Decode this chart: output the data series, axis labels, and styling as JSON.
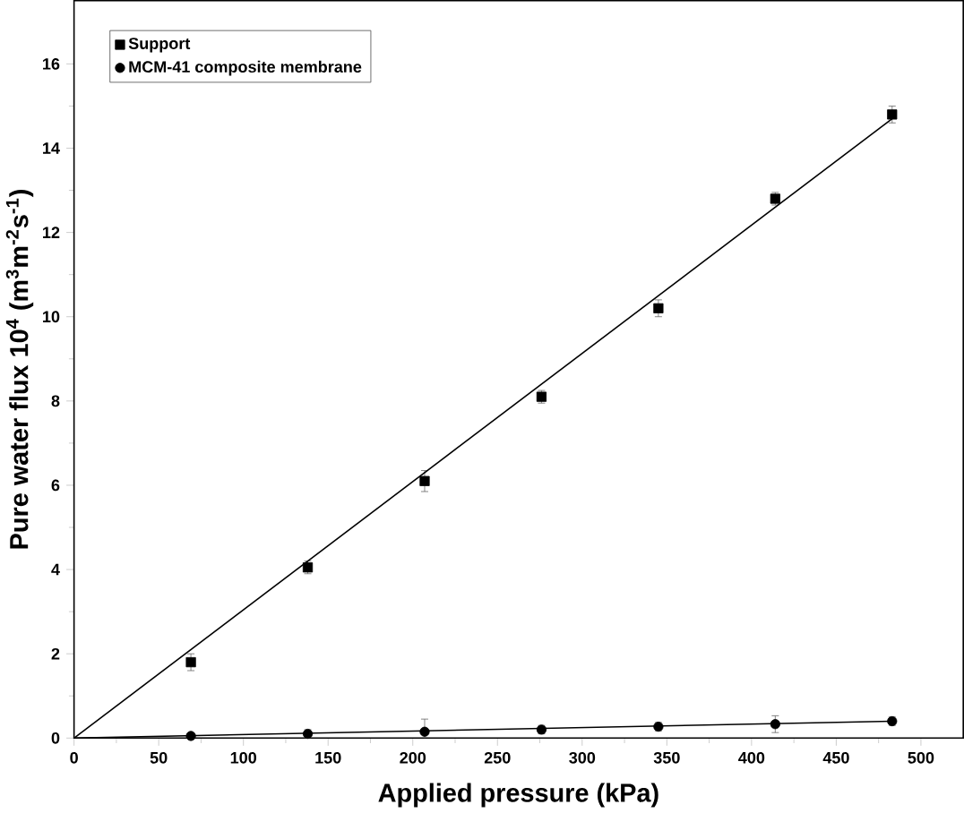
{
  "chart_data": {
    "type": "scatter",
    "xlabel": "Applied pressure (kPa)",
    "ylabel": "Pure water flux  10$^{4}$ (m$^{3}$m$^{-2}$s$^{-1}$)",
    "xlim": [
      0,
      525
    ],
    "ylim": [
      0,
      17.5
    ],
    "xticks": [
      0,
      50,
      100,
      150,
      200,
      250,
      300,
      350,
      400,
      450,
      500
    ],
    "yticks": [
      0,
      2,
      4,
      6,
      8,
      10,
      12,
      14,
      16
    ],
    "legend": "top left",
    "grid": false,
    "series": [
      {
        "name": "Support",
        "color": "#000000",
        "marker": "square",
        "x": [
          69,
          138,
          207,
          276,
          345,
          414,
          483
        ],
        "values": [
          1.8,
          4.05,
          6.1,
          8.1,
          10.2,
          12.8,
          14.8
        ],
        "errors": [
          0.2,
          0.15,
          0.25,
          0.15,
          0.2,
          0.15,
          0.2
        ]
      },
      {
        "name": "MCM-41 composite membrane",
        "color": "#000000",
        "marker": "circle",
        "x": [
          69,
          138,
          207,
          276,
          345,
          414,
          483
        ],
        "values": [
          0.05,
          0.1,
          0.15,
          0.2,
          0.27,
          0.33,
          0.4
        ],
        "errors": [
          0.05,
          0.1,
          0.3,
          0.1,
          0.1,
          0.2,
          0.1
        ]
      },
      {
        "type": "line",
        "color": "#000000",
        "marker": "none",
        "x": [
          0,
          483
        ],
        "values": [
          0,
          14.7
        ]
      },
      {
        "type": "line",
        "color": "#000000",
        "marker": "none",
        "x": [
          0,
          483
        ],
        "values": [
          0,
          0.4
        ]
      }
    ]
  }
}
